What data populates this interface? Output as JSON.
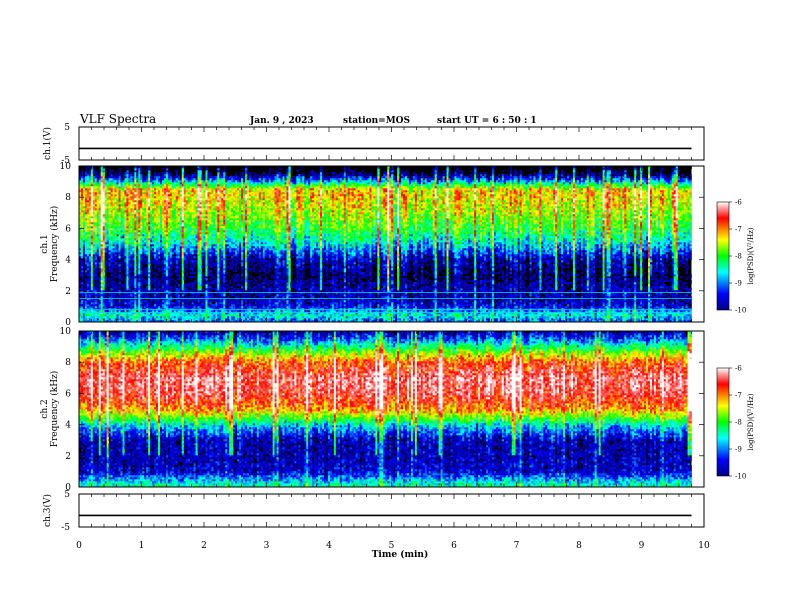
{
  "header": {
    "title": "VLF Spectra",
    "date": "Jan. 9 , 2023",
    "station": "station=MOS",
    "start": "start UT =  6 : 50 : 1"
  },
  "colors": {
    "axes": "#000000",
    "spectrogram_floor": "#000000",
    "colormap": [
      "#000088",
      "#0000ff",
      "#00ffff",
      "#00ff00",
      "#ffff00",
      "#ff0000",
      "#ffffff"
    ]
  },
  "chart_data": [
    {
      "type": "line",
      "name": "ch1_waveform",
      "ylabel": "ch.1(V)",
      "ylim": [
        -5,
        5
      ],
      "y_ticks": [
        "5",
        "-5"
      ],
      "xlim": [
        0,
        10
      ],
      "x": [
        0,
        9.8
      ],
      "y": [
        -1.5,
        -1.5
      ]
    },
    {
      "type": "heatmap",
      "name": "ch1_spectrogram",
      "ylabel": "ch.1\nFrequency (kHz)",
      "xlim": [
        0,
        10
      ],
      "ylim": [
        0,
        10
      ],
      "y_ticks": [
        "0",
        "2",
        "4",
        "6",
        "8",
        "10"
      ],
      "data_end_min": 9.8,
      "horizontal_lines_khz": [
        0.6,
        0.8,
        1.5,
        1.9
      ],
      "colorbar": {
        "label": "log(PSD)(V²/Hz)",
        "range": [
          -10,
          -6
        ],
        "ticks": [
          "-6",
          "-7",
          "-8",
          "-9",
          "-10"
        ]
      },
      "profile": {
        "freq_khz": [
          0,
          0.5,
          1.0,
          1.5,
          2.0,
          3.0,
          4.0,
          5.0,
          6.0,
          7.0,
          8.0,
          8.5,
          9.0,
          9.5,
          10.0
        ],
        "level_log_psd": [
          -9.0,
          -8.5,
          -9.3,
          -9.5,
          -9.5,
          -9.8,
          -9.5,
          -8.6,
          -8.0,
          -7.6,
          -7.3,
          -7.3,
          -8.7,
          -9.8,
          -10.5
        ]
      }
    },
    {
      "type": "heatmap",
      "name": "ch2_spectrogram",
      "ylabel": "ch.2\nFrequency (kHz)",
      "xlim": [
        0,
        10
      ],
      "ylim": [
        0,
        10
      ],
      "y_ticks": [
        "0",
        "2",
        "4",
        "6",
        "8",
        "10"
      ],
      "data_end_min": 9.8,
      "colorbar": {
        "label": "log(PSD)(V²/Hz)",
        "range": [
          -10,
          -6
        ],
        "ticks": [
          "-6",
          "-7",
          "-8",
          "-9",
          "-10"
        ]
      },
      "profile": {
        "freq_khz": [
          0,
          0.5,
          1.0,
          2.0,
          3.0,
          4.0,
          4.5,
          5.0,
          6.0,
          7.0,
          8.0,
          8.5,
          9.0,
          9.5,
          10.0
        ],
        "level_log_psd": [
          -8.3,
          -8.8,
          -9.4,
          -9.5,
          -9.5,
          -8.6,
          -7.8,
          -7.1,
          -6.5,
          -6.4,
          -6.9,
          -7.5,
          -8.3,
          -9.0,
          -9.6
        ]
      }
    },
    {
      "type": "line",
      "name": "ch3_waveform",
      "ylabel": "ch.3(V)",
      "ylim": [
        -5,
        5
      ],
      "y_ticks": [
        "5",
        "-5"
      ],
      "xlim": [
        0,
        10
      ],
      "x": [
        0,
        9.8
      ],
      "y": [
        -1.5,
        -1.5
      ]
    }
  ],
  "x_axis": {
    "label": "Time (min)",
    "ticks": [
      "0",
      "1",
      "2",
      "3",
      "4",
      "5",
      "6",
      "7",
      "8",
      "9",
      "10"
    ]
  }
}
